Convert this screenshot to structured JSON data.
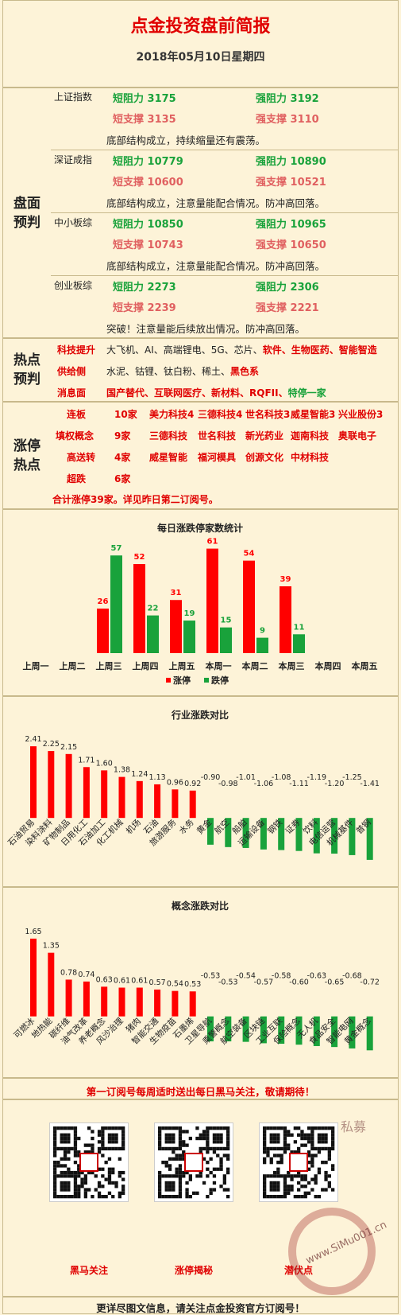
{
  "header": {
    "title": "点金投资盘前简报",
    "date": "2018年05月10日星期四"
  },
  "pan": {
    "label1": "盘面",
    "label2": "预判",
    "idx": [
      {
        "name": "上证指数",
        "sr": "短阻力 3175",
        "lr": "强阻力 3192",
        "ss": "短支撑 3135",
        "ls": "强支撑 3110",
        "note": "底部结构成立，持续缩量还有震荡。"
      },
      {
        "name": "深证成指",
        "sr": "短阻力 10779",
        "lr": "强阻力 10890",
        "ss": "短支撑 10600",
        "ls": "强支撑 10521",
        "note": "底部结构成立，注意量能配合情况。防冲高回落。"
      },
      {
        "name": "中小板综",
        "sr": "短阻力 10850",
        "lr": "强阻力 10965",
        "ss": "短支撑 10743",
        "ls": "强支撑 10650",
        "note": "底部结构成立，注意量能配合情况。防冲高回落。"
      },
      {
        "name": "创业板综",
        "sr": "短阻力 2273",
        "lr": "强阻力 2306",
        "ss": "短支撑 2239",
        "ls": "强支撑 2221",
        "note": "突破！注意量能后续放出情况。防冲高回落。"
      }
    ]
  },
  "hot": {
    "label1": "热点",
    "label2": "预判",
    "rows": [
      {
        "k": "科技提升",
        "plain": "大飞机、AI、高端锂电、5G、芯片、",
        "red": "软件、生物医药、智能智造",
        "green": ""
      },
      {
        "k": "供给侧",
        "plain": "水泥、钴锂、钛白粉、稀土、",
        "red": "黑色系",
        "green": ""
      },
      {
        "k": "消息面",
        "plain": "",
        "red": "国产替代、互联网医疗、新材料、RQFII、",
        "green": "特停一家"
      }
    ]
  },
  "zt": {
    "label1": "涨停",
    "label2": "热点",
    "rows": [
      {
        "k": "连板",
        "n": "10家",
        "items": [
          "美力科技4",
          "三德科技4",
          "世名科技3",
          "威星智能3",
          "兴业股份3"
        ]
      },
      {
        "k": "填权概念",
        "n": "9家",
        "items": [
          "三德科技",
          "世名科技",
          "新光药业",
          "迦南科技",
          "奥联电子"
        ]
      },
      {
        "k": "高送转",
        "n": "4家",
        "items": [
          "威星智能",
          "福河模具",
          "创源文化",
          "中材科技"
        ]
      },
      {
        "k": "超跌",
        "n": "6家",
        "items": []
      }
    ],
    "summary": "合计涨停39家。详见昨日第二订阅号。"
  },
  "chart_data": [
    {
      "type": "bar",
      "title": "每日涨跌停家数统计",
      "categories": [
        "上周一",
        "上周二",
        "上周三",
        "上周四",
        "上周五",
        "本周一",
        "本周二",
        "本周三",
        "本周四",
        "本周五"
      ],
      "series": [
        {
          "name": "涨停",
          "color": "#ff0000",
          "values": [
            null,
            null,
            26,
            52,
            31,
            61,
            54,
            39,
            null,
            null
          ]
        },
        {
          "name": "跌停",
          "color": "#19a23b",
          "values": [
            null,
            null,
            57,
            22,
            19,
            15,
            9,
            11,
            null,
            null
          ]
        }
      ],
      "ylim": [
        0,
        65
      ]
    },
    {
      "type": "bar",
      "title": "行业涨跌对比",
      "categories": [
        "石油贸易",
        "染料涂料",
        "矿物制品",
        "日用化工",
        "石油加工",
        "化工机械",
        "机场",
        "石油",
        "旅游服务",
        "水务",
        "黄金",
        "航空",
        "船舶",
        "运输设备",
        "钢铁",
        "证券",
        "饮料",
        "电信运营",
        "机械基件",
        "普钢"
      ],
      "values": [
        2.41,
        2.25,
        2.15,
        1.71,
        1.6,
        1.38,
        1.24,
        1.13,
        0.96,
        0.92,
        -0.9,
        -0.98,
        -1.01,
        -1.06,
        -1.08,
        -1.11,
        -1.19,
        -1.2,
        -1.25,
        -1.41
      ],
      "ylim": [
        -1.6,
        2.6
      ]
    },
    {
      "type": "bar",
      "title": "概念涨跌对比",
      "categories": [
        "可燃冰",
        "地热能",
        "碳纤维",
        "油气改革",
        "养老概念",
        "风沙治理",
        "猪肉",
        "智能交通",
        "生物疫苗",
        "石墨烯",
        "卫星导航",
        "乘警概念",
        "航空装备",
        "区块链",
        "工业互联",
        "保险概念",
        "无人机",
        "食品安全",
        "智能电网",
        "黄金概念"
      ],
      "values": [
        1.65,
        1.35,
        0.78,
        0.74,
        0.63,
        0.61,
        0.61,
        0.57,
        0.54,
        0.53,
        -0.53,
        -0.53,
        -0.54,
        -0.57,
        -0.58,
        -0.6,
        -0.63,
        -0.65,
        -0.68,
        -0.72
      ],
      "ylim": [
        -0.85,
        1.8
      ]
    }
  ],
  "footer": {
    "notice": "第一订阅号每周适时送出每日黑马关注，敬请期待！",
    "qr": [
      "黑马关注",
      "涨停揭秘",
      "潜伏点"
    ],
    "bottom": "更详尽图文信息，请关注点金投资官方订阅号！",
    "watermark": "www.SiMu001.cn",
    "wm2": "私募"
  },
  "colors": {
    "red": "#e00000",
    "green": "#19a23b",
    "bg": "#fdf3d8"
  }
}
